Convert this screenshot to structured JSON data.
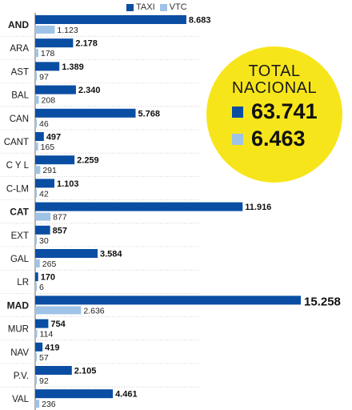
{
  "colors": {
    "taxi": "#0a4ea3",
    "vtc": "#9fc3e6",
    "badge": "#f7e51b"
  },
  "legend": {
    "taxi_label": "TAXI",
    "vtc_label": "VTC"
  },
  "total": {
    "title_line1": "TOTAL",
    "title_line2": "NACIONAL",
    "taxi_value": "63.741",
    "vtc_value": "6.463"
  },
  "chart_data": {
    "type": "bar",
    "orientation": "horizontal",
    "categories": [
      "AND",
      "ARA",
      "AST",
      "BAL",
      "CAN",
      "CANT",
      "C Y L",
      "C-LM",
      "CAT",
      "EXT",
      "GAL",
      "LR",
      "MAD",
      "MUR",
      "NAV",
      "P.V.",
      "VAL"
    ],
    "bold_categories": [
      "AND",
      "CAT",
      "MAD"
    ],
    "series": [
      {
        "name": "TAXI",
        "values": [
          8683,
          2178,
          1389,
          2340,
          5768,
          497,
          2259,
          1103,
          11916,
          857,
          3584,
          170,
          15258,
          754,
          419,
          2105,
          4461
        ],
        "labels": [
          "8.683",
          "2.178",
          "1.389",
          "2.340",
          "5.768",
          "497",
          "2.259",
          "1.103",
          "11.916",
          "857",
          "3.584",
          "170",
          "15.258",
          "754",
          "419",
          "2.105",
          "4.461"
        ]
      },
      {
        "name": "VTC",
        "values": [
          1123,
          178,
          97,
          208,
          46,
          165,
          291,
          42,
          877,
          30,
          265,
          6,
          2636,
          114,
          57,
          92,
          236
        ],
        "labels": [
          "1.123",
          "178",
          "97",
          "208",
          "46",
          "165",
          "291",
          "42",
          "877",
          "30",
          "265",
          "6",
          "2.636",
          "114",
          "57",
          "92",
          "236"
        ]
      }
    ],
    "legend_position": "top"
  }
}
